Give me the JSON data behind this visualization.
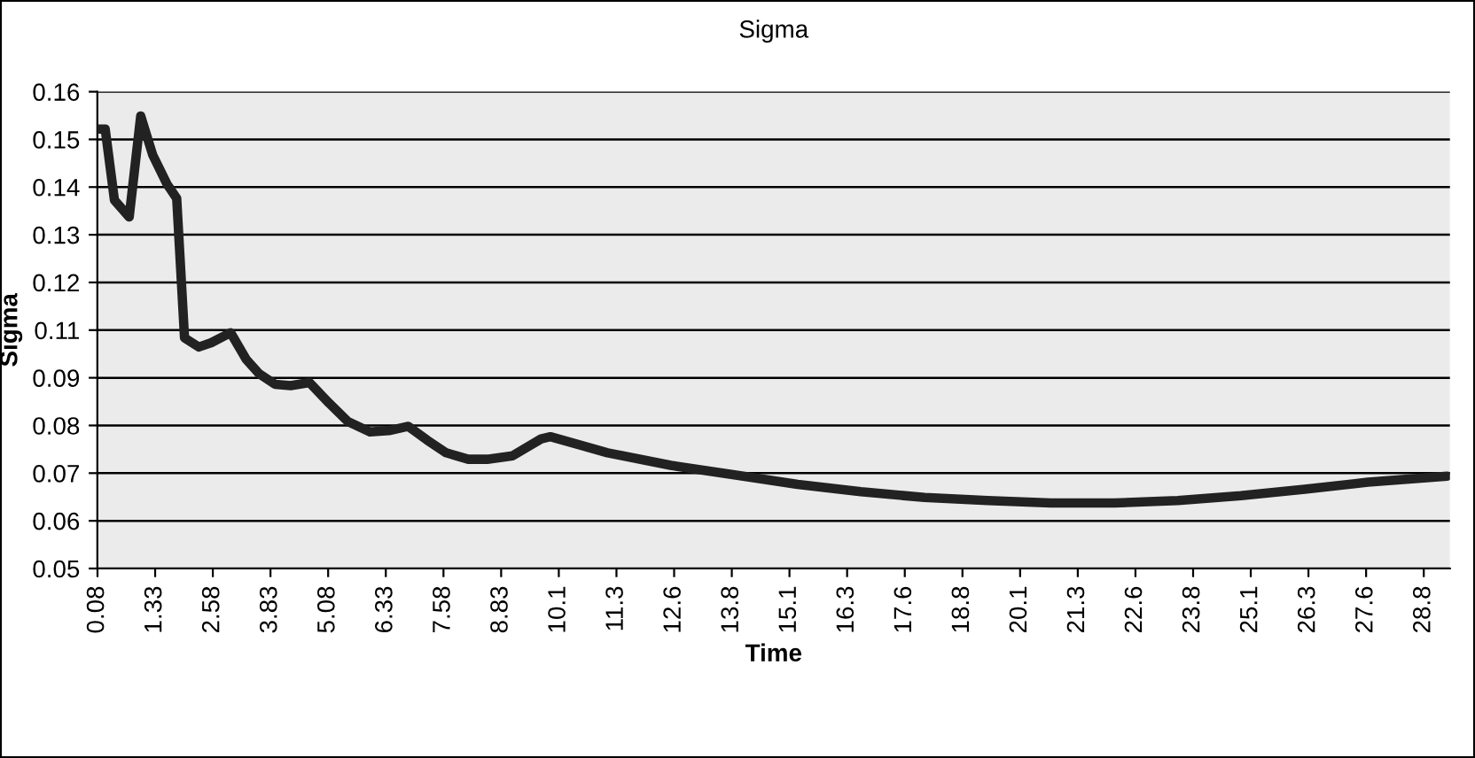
{
  "chart_data": {
    "type": "line",
    "title": "Sigma",
    "xlabel": "Time",
    "ylabel": "Sigma",
    "grid": "y",
    "legend": false,
    "marker": "none",
    "line_style": "solid",
    "x": [
      0.08,
      0.25,
      0.45,
      0.77,
      1.02,
      1.28,
      1.59,
      1.8,
      1.97,
      2.28,
      2.55,
      2.97,
      3.31,
      3.59,
      3.93,
      4.27,
      4.68,
      5.1,
      5.51,
      5.99,
      6.4,
      6.82,
      7.23,
      7.64,
      8.12,
      8.53,
      9.08,
      9.7,
      9.9,
      11.14,
      12.51,
      13.89,
      15.26,
      16.63,
      18.01,
      19.38,
      20.75,
      22.13,
      23.5,
      24.87,
      26.25,
      27.62,
      29.34
    ],
    "series": [
      {
        "color": "#222222",
        "values": [
          0.1514,
          0.1514,
          0.135,
          0.1311,
          0.1544,
          0.1454,
          0.1387,
          0.1354,
          0.1032,
          0.1011,
          0.1021,
          0.1044,
          0.0982,
          0.0949,
          0.0925,
          0.0922,
          0.0929,
          0.0882,
          0.0839,
          0.0815,
          0.0818,
          0.0828,
          0.0796,
          0.0767,
          0.0752,
          0.0752,
          0.076,
          0.0799,
          0.0804,
          0.0767,
          0.0738,
          0.0716,
          0.0694,
          0.0677,
          0.0664,
          0.0657,
          0.0651,
          0.0651,
          0.0657,
          0.0668,
          0.0683,
          0.0699,
          0.0713
        ]
      }
    ],
    "xlim": [
      0.08,
      29.4
    ],
    "xticks": [
      {
        "value": 0.083,
        "label": "0.08"
      },
      {
        "value": 1.333,
        "label": "1.33"
      },
      {
        "value": 2.583,
        "label": "2.58"
      },
      {
        "value": 3.833,
        "label": "3.83"
      },
      {
        "value": 5.083,
        "label": "5.08"
      },
      {
        "value": 6.333,
        "label": "6.33"
      },
      {
        "value": 7.583,
        "label": "7.58"
      },
      {
        "value": 8.833,
        "label": "8.83"
      },
      {
        "value": 10.083,
        "label": "10.1"
      },
      {
        "value": 11.333,
        "label": "11.3"
      },
      {
        "value": 12.583,
        "label": "12.6"
      },
      {
        "value": 13.833,
        "label": "13.8"
      },
      {
        "value": 15.083,
        "label": "15.1"
      },
      {
        "value": 16.333,
        "label": "16.3"
      },
      {
        "value": 17.583,
        "label": "17.6"
      },
      {
        "value": 18.833,
        "label": "18.8"
      },
      {
        "value": 20.083,
        "label": "20.1"
      },
      {
        "value": 21.333,
        "label": "21.3"
      },
      {
        "value": 22.583,
        "label": "22.6"
      },
      {
        "value": 23.833,
        "label": "23.8"
      },
      {
        "value": 25.083,
        "label": "25.1"
      },
      {
        "value": 26.333,
        "label": "26.3"
      },
      {
        "value": 27.583,
        "label": "27.6"
      },
      {
        "value": 28.833,
        "label": "28.8"
      }
    ],
    "ylim": [
      0.05,
      0.16
    ],
    "yticks": [
      {
        "value": 0.05,
        "label": "0.05"
      },
      {
        "value": 0.061,
        "label": "0.06"
      },
      {
        "value": 0.072,
        "label": "0.07"
      },
      {
        "value": 0.083,
        "label": "0.08"
      },
      {
        "value": 0.094,
        "label": "0.09"
      },
      {
        "value": 0.105,
        "label": "0.11"
      },
      {
        "value": 0.116,
        "label": "0.12"
      },
      {
        "value": 0.127,
        "label": "0.13"
      },
      {
        "value": 0.138,
        "label": "0.14"
      },
      {
        "value": 0.149,
        "label": "0.15"
      },
      {
        "value": 0.16,
        "label": "0.16"
      }
    ]
  }
}
